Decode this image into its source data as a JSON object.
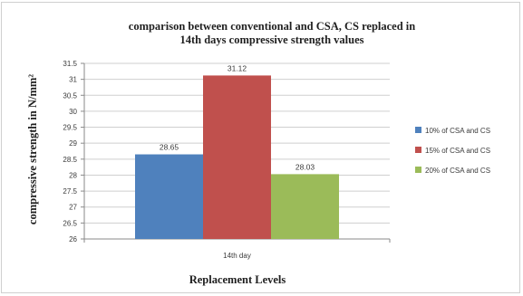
{
  "chart_data": {
    "type": "bar",
    "title_lines": [
      "comparison between conventional and CSA, CS replaced in",
      "14th days compressive strength values"
    ],
    "xlabel": "Replacement Levels",
    "ylabel": "compressive strength in N/mm²",
    "categories": [
      "14th day"
    ],
    "yticks": [
      "26",
      "26.5",
      "27",
      "27.5",
      "28",
      "28.5",
      "29",
      "29.5",
      "30",
      "30.5",
      "31",
      "31.5"
    ],
    "ylim": [
      26,
      31.5
    ],
    "grid": true,
    "legend_position": "right",
    "series": [
      {
        "name": "10% of CSA and CS",
        "values": [
          28.65
        ],
        "label": "28.65",
        "color": "#4f81bd"
      },
      {
        "name": "15% of CSA and CS",
        "values": [
          31.12
        ],
        "label": "31.12",
        "color": "#c0504d"
      },
      {
        "name": "20% of CSA and CS",
        "values": [
          28.03
        ],
        "label": "28.03",
        "color": "#9bbb59"
      }
    ]
  }
}
